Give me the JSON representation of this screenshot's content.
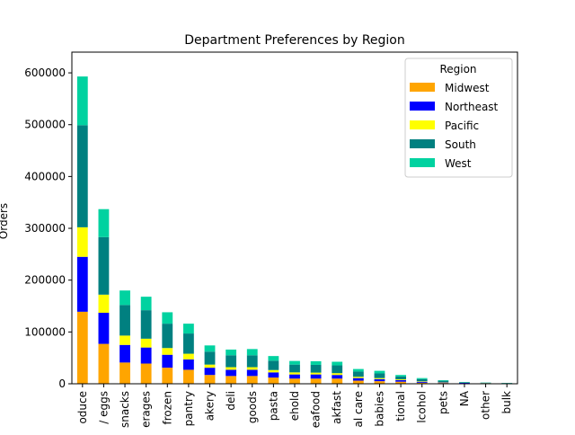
{
  "chart_data": {
    "type": "bar",
    "stacked": true,
    "title": "Department Preferences by Region",
    "xlabel": "",
    "ylabel": "Orders",
    "ylim": [
      0,
      640000
    ],
    "yticks": [
      0,
      100000,
      200000,
      300000,
      400000,
      500000,
      600000
    ],
    "grid": false,
    "legend": {
      "title": "Region",
      "placement": "top-right"
    },
    "categories": [
      "oduce",
      "/ eggs",
      "snacks",
      "erages",
      "frozen",
      "pantry",
      "akery",
      "deli",
      "goods",
      "pasta",
      "ehold",
      "eafood",
      "akfast",
      "al care",
      "babies",
      "tional",
      "lcohol",
      "pets",
      "NA",
      "other",
      "bulk"
    ],
    "series": [
      {
        "name": "Midwest",
        "color": "#ffa500",
        "values": [
          139000,
          77000,
          41000,
          39000,
          31000,
          27000,
          17000,
          15000,
          15000,
          12000,
          10000,
          10000,
          10000,
          6000,
          5000,
          4000,
          2000,
          1500,
          700,
          600,
          300
        ]
      },
      {
        "name": "Northeast",
        "color": "#0000ff",
        "values": [
          106000,
          60000,
          34000,
          31000,
          25000,
          20000,
          14000,
          12000,
          12000,
          10000,
          8000,
          8000,
          7000,
          5000,
          4000,
          3000,
          2000,
          1000,
          1000,
          400,
          300
        ]
      },
      {
        "name": "Pacific",
        "color": "#ffff00",
        "values": [
          57000,
          35000,
          18000,
          17000,
          13000,
          11000,
          6000,
          5000,
          5000,
          4500,
          4000,
          3500,
          3500,
          2500,
          2000,
          1500,
          1000,
          800,
          200,
          300,
          100
        ]
      },
      {
        "name": "South",
        "color": "#008080",
        "values": [
          197000,
          111000,
          59000,
          55000,
          47000,
          39000,
          25000,
          23000,
          23000,
          18000,
          15000,
          15000,
          15000,
          10000,
          9000,
          5500,
          4000,
          2500,
          1000,
          800,
          700
        ]
      },
      {
        "name": "West",
        "color": "#00d2a0",
        "values": [
          94000,
          54000,
          28000,
          26000,
          22000,
          19000,
          12000,
          11000,
          12000,
          9000,
          7000,
          7000,
          7000,
          5000,
          5000,
          3000,
          2000,
          1200,
          600,
          300,
          300
        ]
      }
    ]
  }
}
